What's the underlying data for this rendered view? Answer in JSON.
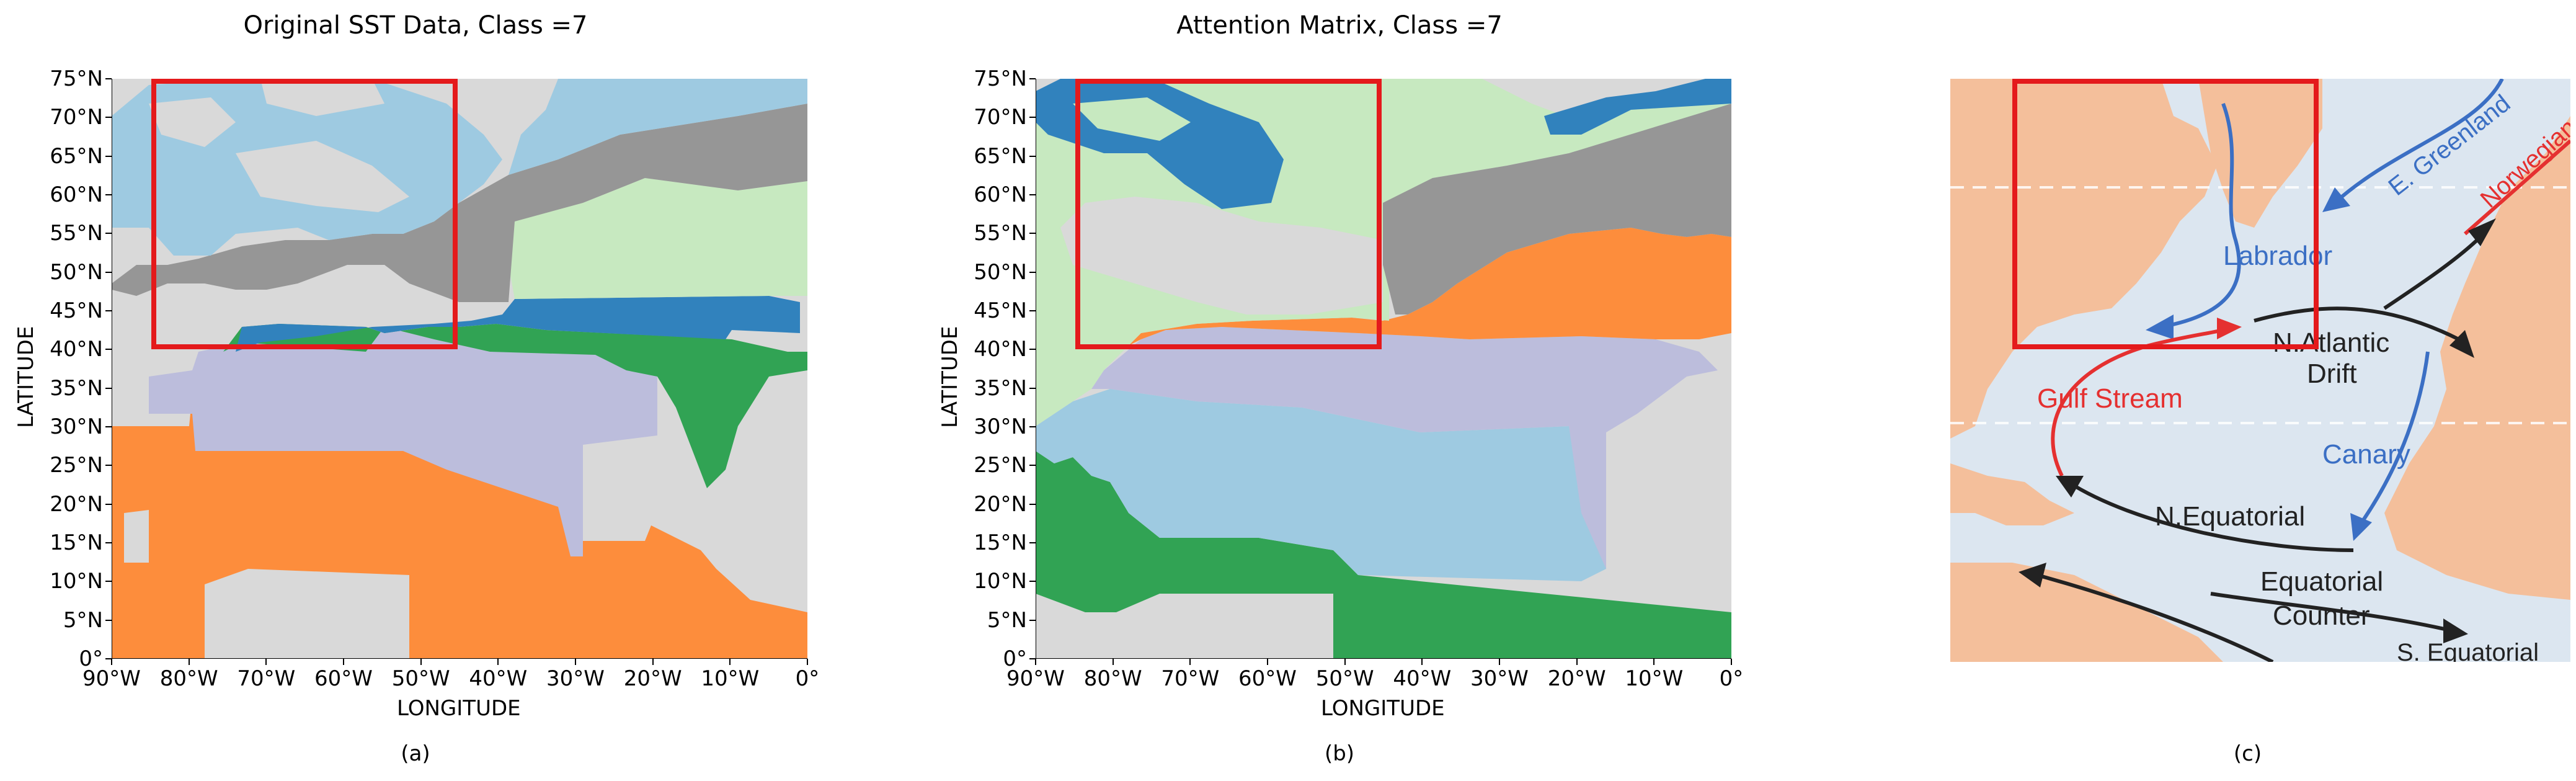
{
  "panels": [
    {
      "id": "a",
      "title": "Original SST Data, Class =7",
      "caption": "(a)",
      "xlabel": "LONGITUDE",
      "ylabel": "LATITUDE",
      "x_ticks": [
        "90°W",
        "80°W",
        "70°W",
        "60°W",
        "50°W",
        "40°W",
        "30°W",
        "20°W",
        "10°W",
        "0°"
      ],
      "y_ticks": [
        "75°N",
        "70°N",
        "65°N",
        "60°N",
        "55°N",
        "50°N",
        "45°N",
        "40°N",
        "35°N",
        "30°N",
        "25°N",
        "20°N",
        "15°N",
        "10°N",
        "5°N",
        "0°"
      ],
      "highlight_box": {
        "lon": [
          -84,
          -45
        ],
        "lat": [
          40,
          75
        ]
      }
    },
    {
      "id": "b",
      "title": "Attention Matrix, Class =7",
      "caption": "(b)",
      "xlabel": "LONGITUDE",
      "ylabel": "LATITUDE",
      "x_ticks": [
        "90°W",
        "80°W",
        "70°W",
        "60°W",
        "50°W",
        "40°W",
        "30°W",
        "20°W",
        "10°W",
        "0°"
      ],
      "y_ticks": [
        "75°N",
        "70°N",
        "65°N",
        "60°N",
        "55°N",
        "50°N",
        "45°N",
        "40°N",
        "35°N",
        "30°N",
        "25°N",
        "20°N",
        "15°N",
        "10°N",
        "5°N",
        "0°"
      ],
      "highlight_box": {
        "lon": [
          -84,
          -45
        ],
        "lat": [
          40,
          75
        ]
      }
    },
    {
      "id": "c",
      "caption": "(c)",
      "current_labels": {
        "labrador": "Labrador",
        "greenland": "E. Greenland",
        "norwegian": "Norwegian",
        "natlantic1": "N.Atlantic",
        "natlantic2": "Drift",
        "gulf": "Gulf Stream",
        "canary": "Canary",
        "nequatorial": "N.Equatorial",
        "eqcounter1": "Equatorial",
        "eqcounter2": "Counter",
        "sequatorial": "S. Equatorial"
      }
    }
  ],
  "colors": {
    "lightgray": "#d9d9d9",
    "darkgray": "#969696",
    "lightblue": "#9ecae1",
    "blue": "#3182bd",
    "green": "#31a354",
    "lightgreen": "#c7e9c0",
    "lavender": "#bcbddc",
    "orange": "#fd8d3c",
    "red_box": "#e41a1c",
    "ocean": "#dce6f0",
    "land": "#f4bf9b"
  }
}
